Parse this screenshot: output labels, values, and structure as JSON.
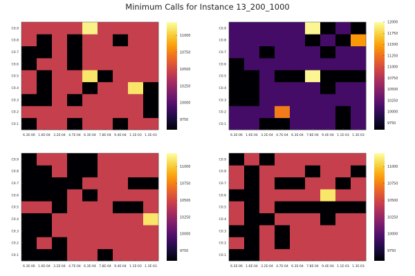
{
  "title": "Minimum Calls for Instance 13_200_1000",
  "palette": [
    "#000004",
    "#1b0c41",
    "#4a0c6b",
    "#781c6d",
    "#a52c60",
    "#cf4446",
    "#ed6925",
    "#fb9b06",
    "#f7d13d",
    "#fcffa4"
  ],
  "chart_data": [
    {
      "type": "heatmap",
      "x_labels": [
        "6.3E-06",
        "1.6E-04",
        "3.2E-04",
        "4.7E-04",
        "6.3E-04",
        "7.8E-04",
        "9.4E-04",
        "1.1E-03",
        "1.3E-03"
      ],
      "y_labels": [
        "C0.1",
        "C0.2",
        "C0.3",
        "C0.4",
        "C0.5",
        "C0.6",
        "C0.7",
        "C0.8",
        "C0.9"
      ],
      "colorbar": {
        "min": 9600,
        "max": 11200,
        "ticks": [
          9750,
          10000,
          10250,
          10500,
          10750,
          11000
        ]
      },
      "z": [
        [
          9600,
          10450,
          10450,
          9600,
          10450,
          10450,
          9600,
          10450,
          10450
        ],
        [
          10450,
          10450,
          10450,
          10450,
          10450,
          10450,
          10450,
          10450,
          9600
        ],
        [
          9600,
          9600,
          10450,
          9600,
          10450,
          10450,
          10450,
          10450,
          9600
        ],
        [
          10450,
          9600,
          10450,
          10450,
          9600,
          10450,
          10450,
          11100,
          9600
        ],
        [
          10450,
          9600,
          10450,
          10450,
          11100,
          9600,
          10450,
          10450,
          10450
        ],
        [
          9600,
          10450,
          10450,
          9600,
          10450,
          10450,
          10450,
          10450,
          10450
        ],
        [
          9600,
          9600,
          10450,
          9600,
          10450,
          10450,
          10450,
          10450,
          10450
        ],
        [
          10450,
          9600,
          10450,
          9600,
          10450,
          10450,
          9600,
          10450,
          10450
        ],
        [
          10450,
          10450,
          10450,
          10450,
          11150,
          10450,
          10450,
          10450,
          10450
        ]
      ]
    },
    {
      "type": "heatmap",
      "x_labels": [
        "6.3E-06",
        "1.6E-04",
        "3.2E-04",
        "4.7E-04",
        "6.3E-04",
        "7.8E-04",
        "9.4E-04",
        "1.1E-03",
        "1.3E-03"
      ],
      "y_labels": [
        "C0.1",
        "C0.2",
        "C0.3",
        "C0.4",
        "C0.5",
        "C0.6",
        "C0.7",
        "C0.8",
        "C0.9"
      ],
      "colorbar": {
        "min": 9600,
        "max": 12000,
        "ticks": [
          9750,
          10000,
          10250,
          10500,
          10750,
          11000,
          11250,
          11500,
          11750,
          12000
        ]
      },
      "z": [
        [
          10100,
          10100,
          9600,
          9600,
          10100,
          10100,
          10100,
          9600,
          10100
        ],
        [
          10100,
          10100,
          10100,
          11300,
          10100,
          10100,
          10100,
          9600,
          10100
        ],
        [
          9600,
          9600,
          10100,
          10100,
          10100,
          10100,
          10100,
          10100,
          10100
        ],
        [
          9600,
          9600,
          10100,
          10100,
          10100,
          10100,
          9600,
          10100,
          10100
        ],
        [
          9600,
          9600,
          10100,
          9600,
          9600,
          11950,
          9600,
          9600,
          9600
        ],
        [
          9600,
          10100,
          10100,
          10100,
          10100,
          10100,
          10100,
          10100,
          10100
        ],
        [
          10100,
          10100,
          9600,
          10100,
          10100,
          10100,
          9600,
          10100,
          10100
        ],
        [
          10100,
          10100,
          10100,
          10100,
          10100,
          9600,
          10100,
          9600,
          11450
        ],
        [
          10100,
          10100,
          10100,
          10100,
          10100,
          11950,
          9600,
          10100,
          9600
        ]
      ]
    },
    {
      "type": "heatmap",
      "x_labels": [
        "6.3E-06",
        "1.6E-04",
        "3.2E-04",
        "4.7E-04",
        "6.3E-04",
        "7.8E-04",
        "9.4E-04",
        "1.1E-03",
        "1.3E-03"
      ],
      "y_labels": [
        "C0.1",
        "C0.2",
        "C0.3",
        "C0.4",
        "C0.5",
        "C0.6",
        "C0.7",
        "C0.8",
        "C0.9"
      ],
      "colorbar": {
        "min": 9600,
        "max": 11200,
        "ticks": [
          9750,
          10000,
          10250,
          10500,
          10750,
          11000
        ]
      },
      "z": [
        [
          9600,
          9600,
          9600,
          10450,
          10450,
          9600,
          10450,
          10450,
          10450
        ],
        [
          9600,
          10450,
          9600,
          10450,
          10450,
          10450,
          10450,
          10450,
          10450
        ],
        [
          9600,
          9600,
          10450,
          10450,
          10450,
          10450,
          10450,
          10450,
          10450
        ],
        [
          9600,
          9600,
          10450,
          10450,
          10450,
          10450,
          10450,
          10450,
          11100
        ],
        [
          10450,
          10450,
          9600,
          10450,
          10450,
          10450,
          9600,
          9600,
          10450
        ],
        [
          9600,
          9600,
          9600,
          10450,
          9600,
          10450,
          10450,
          10450,
          10450
        ],
        [
          9600,
          9600,
          9600,
          9600,
          10450,
          10450,
          10450,
          9600,
          9600
        ],
        [
          9600,
          9600,
          10450,
          9600,
          9600,
          10450,
          10450,
          10450,
          10450
        ],
        [
          9600,
          10450,
          10450,
          9600,
          9600,
          10450,
          10450,
          10450,
          10450
        ]
      ]
    },
    {
      "type": "heatmap",
      "x_labels": [
        "6.3E-06",
        "1.6E-04",
        "3.2E-04",
        "4.7E-04",
        "6.3E-04",
        "7.8E-04",
        "9.4E-04",
        "1.1E-03",
        "1.3E-03"
      ],
      "y_labels": [
        "C0.1",
        "C0.2",
        "C0.3",
        "C0.4",
        "C0.5",
        "C0.6",
        "C0.7",
        "C0.8",
        "C0.9"
      ],
      "colorbar": {
        "min": 9600,
        "max": 11200,
        "ticks": [
          9750,
          10000,
          10250,
          10500,
          10750,
          11000
        ]
      },
      "z": [
        [
          9600,
          9600,
          10450,
          10450,
          10450,
          10450,
          10450,
          10450,
          10450
        ],
        [
          10450,
          9600,
          10450,
          9600,
          10450,
          10450,
          10450,
          10450,
          10450
        ],
        [
          9600,
          9600,
          10450,
          9600,
          10450,
          10450,
          10450,
          10450,
          10450
        ],
        [
          10450,
          9600,
          9600,
          10450,
          10450,
          10450,
          9600,
          10450,
          10450
        ],
        [
          10450,
          9600,
          10450,
          9600,
          9600,
          9600,
          9600,
          9600,
          9600
        ],
        [
          9600,
          9600,
          10450,
          10450,
          10450,
          10450,
          11100,
          10450,
          10450
        ],
        [
          10450,
          9600,
          10450,
          9600,
          9600,
          10450,
          10450,
          9600,
          10450
        ],
        [
          10450,
          9600,
          10450,
          10450,
          10450,
          9600,
          10450,
          10450,
          9600
        ],
        [
          9600,
          10450,
          9600,
          10450,
          10450,
          10450,
          10450,
          10450,
          10450
        ]
      ]
    }
  ]
}
